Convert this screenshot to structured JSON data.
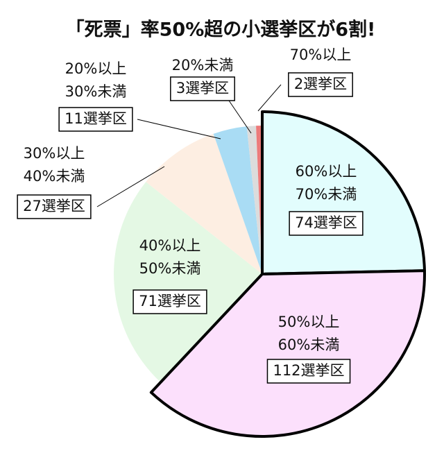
{
  "chart_data": {
    "type": "pie",
    "title": "「死票」率50%超の小選挙区が6割!",
    "categories": [
      [
        "60%以上",
        "70%未満"
      ],
      [
        "50%以上",
        "60%未満"
      ],
      [
        "40%以上",
        "50%未満"
      ],
      [
        "30%以上",
        "40%未満"
      ],
      [
        "20%以上",
        "30%未満"
      ],
      [
        "20%未満"
      ],
      [
        "70%以上"
      ]
    ],
    "values": [
      74,
      112,
      71,
      27,
      11,
      3,
      2
    ],
    "value_labels": [
      "74選挙区",
      "112選挙区",
      "71選挙区",
      "27選挙区",
      "11選挙区",
      "3選挙区",
      "2選挙区"
    ],
    "colors": [
      "#e2fdfd",
      "#fce0fc",
      "#e4f8e4",
      "#fdeee2",
      "#a9dcf4",
      "#dcdcdc",
      "#ec7a7a"
    ],
    "outlined": [
      true,
      true,
      false,
      false,
      false,
      false,
      false
    ]
  }
}
